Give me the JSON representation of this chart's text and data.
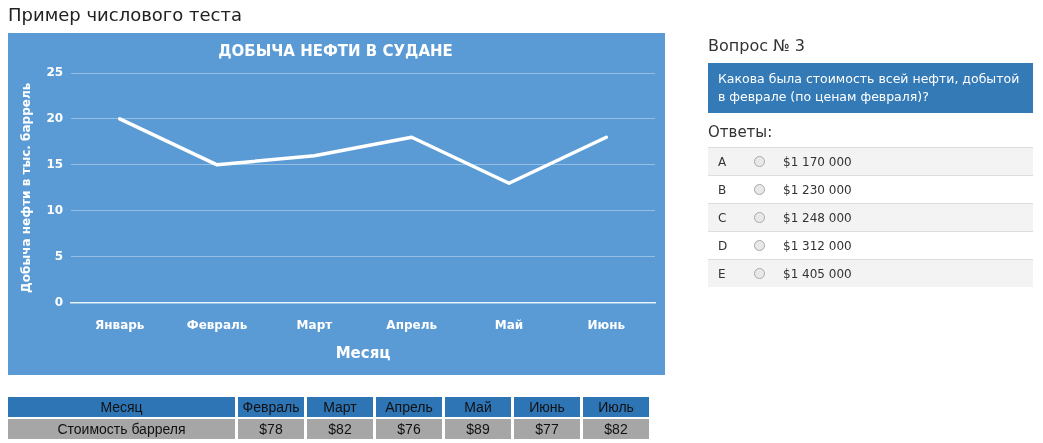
{
  "chart_data": [
    {
      "type": "line",
      "title": "ДОБЫЧА НЕФТИ В СУДАНЕ",
      "xlabel": "Месяц",
      "ylabel": "Добыча нефти в тыс. баррель",
      "annotations": [
        "Пример числового теста"
      ],
      "categories": [
        "Январь",
        "Февраль",
        "Март",
        "Апрель",
        "Май",
        "Июнь"
      ],
      "series": [
        {
          "color": "#ffffff",
          "values": [
            20,
            15,
            16,
            18,
            13,
            18
          ]
        }
      ],
      "ylim": [
        0,
        25
      ],
      "yticks": [
        0,
        5,
        10,
        15,
        20,
        25
      ],
      "grid": "y",
      "legend": false,
      "marker": "none",
      "line_style": "solid"
    },
    {
      "type": "other",
      "title": "Вопрос № 3",
      "subtitle": "Какова была стоимость всей нефти, добытой в феврале (по ценам февраля)?",
      "annotations": [
        "Ответы:"
      ],
      "categories": [
        "A",
        "B",
        "C",
        "D",
        "E"
      ],
      "value_labels": [
        "$1 170 000",
        "$1 230 000",
        "$1 248 000",
        "$1 312 000",
        "$1 405 000"
      ]
    },
    {
      "type": "other",
      "xlabel": "Месяц",
      "ylabel": "Стоимость барреля",
      "categories": [
        "Февраль",
        "Март",
        "Апрель",
        "Май",
        "Июнь",
        "Июль"
      ],
      "value_labels": [
        "$78",
        "$82",
        "$76",
        "$89",
        "$77",
        "$82"
      ]
    }
  ]
}
